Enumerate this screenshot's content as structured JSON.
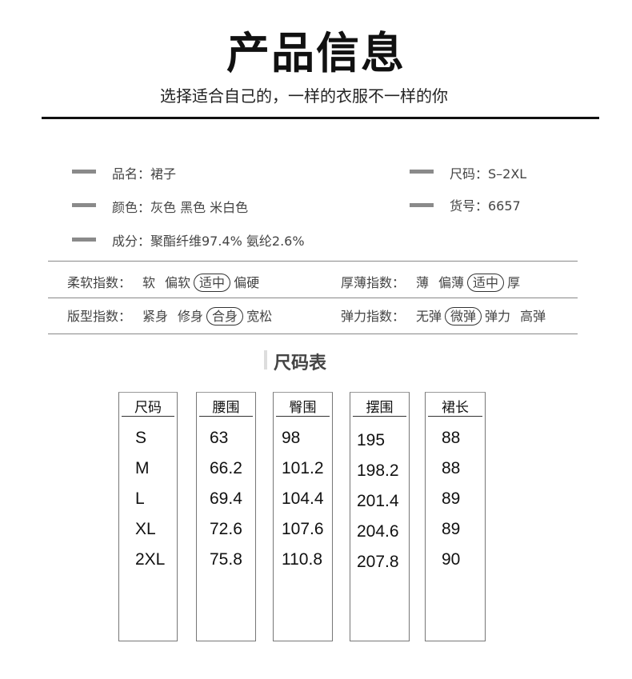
{
  "header": {
    "title": "产品信息",
    "subtitle": "选择适合自己的，一样的衣服不一样的你"
  },
  "info": {
    "name": "品名：裙子",
    "size": "尺码：S–2XL",
    "color": "颜色：灰色 黑色 米白色",
    "sku": "货号：6657",
    "material": "成分：聚酯纤维97.4% 氨纶2.6%"
  },
  "indices": [
    {
      "label": "柔软指数：",
      "options": [
        "软",
        "偏软",
        "适中",
        "偏硬"
      ],
      "selected": 2
    },
    {
      "label": "厚薄指数：",
      "options": [
        "薄",
        "偏薄",
        "适中",
        "厚"
      ],
      "selected": 2
    },
    {
      "label": "版型指数：",
      "options": [
        "紧身",
        "修身",
        "合身",
        "宽松"
      ],
      "selected": 2
    },
    {
      "label": "弹力指数：",
      "options": [
        "无弹",
        "微弹",
        "弹力",
        "高弹"
      ],
      "selected": 1
    }
  ],
  "size_table": {
    "title": "尺码表",
    "columns": [
      {
        "header": "尺码",
        "values": [
          "S",
          "M",
          "L",
          "XL",
          "2XL"
        ]
      },
      {
        "header": "腰围",
        "values": [
          "63",
          "66.2",
          "69.4",
          "72.6",
          "75.8"
        ]
      },
      {
        "header": "臀围",
        "values": [
          "98",
          "101.2",
          "104.4",
          "107.6",
          "110.8"
        ]
      },
      {
        "header": "摆围",
        "values": [
          "195",
          "198.2",
          "201.4",
          "204.6",
          "207.8"
        ]
      },
      {
        "header": "裙长",
        "values": [
          "88",
          "88",
          "89",
          "89",
          "90"
        ]
      }
    ]
  }
}
